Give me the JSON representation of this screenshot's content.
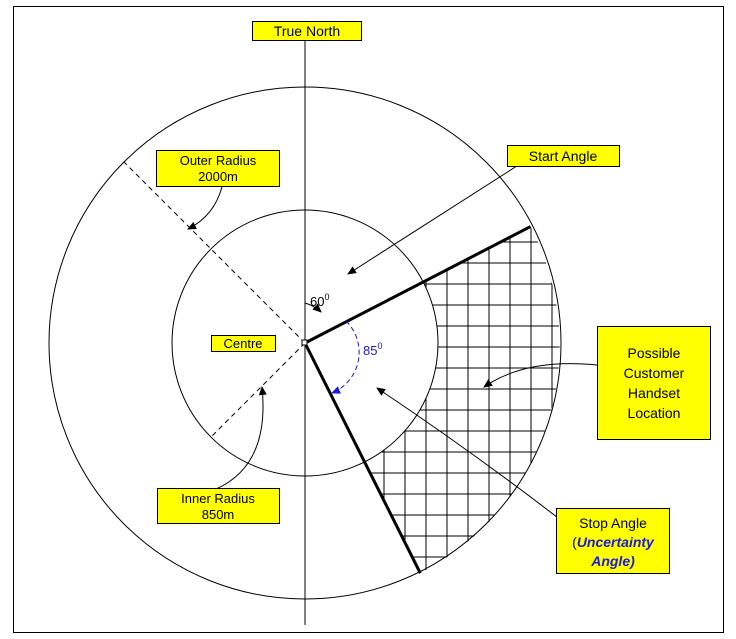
{
  "labels": {
    "true_north": "True North",
    "start_angle": "Start Angle",
    "outer_radius": [
      "Outer Radius",
      "2000m"
    ],
    "centre": "Centre",
    "possible_location": [
      "Possible",
      "Customer",
      "Handset",
      "Location"
    ],
    "inner_radius": [
      "Inner Radius",
      "850m"
    ],
    "stop_angle_line1": "Stop Angle",
    "stop_angle_open": "(",
    "stop_angle_emph1": "Uncertainty",
    "stop_angle_emph2": "Angle)"
  },
  "angles": {
    "start": {
      "value": "60",
      "sup": "0"
    },
    "stop": {
      "value": "85",
      "sup": "0"
    }
  },
  "colors": {
    "label_fill": "#ffff00",
    "emphasis": "#1a1adf"
  }
}
